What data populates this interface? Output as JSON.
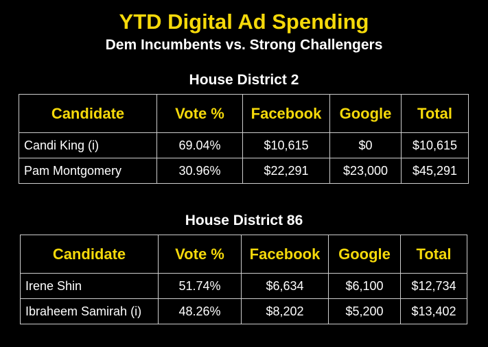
{
  "title": "YTD Digital Ad Spending",
  "subtitle": "Dem Incumbents vs. Strong Challengers",
  "colors": {
    "accent": "#f5d90a",
    "background": "#000000",
    "text": "#ffffff",
    "border": "#cfcfcf"
  },
  "chart_data": {
    "type": "table",
    "columns": [
      "Candidate",
      "Vote %",
      "Facebook",
      "Google",
      "Total"
    ],
    "districts": [
      {
        "heading": "House District 2",
        "rows": [
          [
            "Candi King (i)",
            "69.04%",
            "$10,615",
            "$0",
            "$10,615"
          ],
          [
            "Pam Montgomery",
            "30.96%",
            "$22,291",
            "$23,000",
            "$45,291"
          ]
        ]
      },
      {
        "heading": "House District 86",
        "rows": [
          [
            "Irene Shin",
            "51.74%",
            "$6,634",
            "$6,100",
            "$12,734"
          ],
          [
            "Ibraheem Samirah (i)",
            "48.26%",
            "$8,202",
            "$5,200",
            "$13,402"
          ]
        ]
      }
    ]
  }
}
